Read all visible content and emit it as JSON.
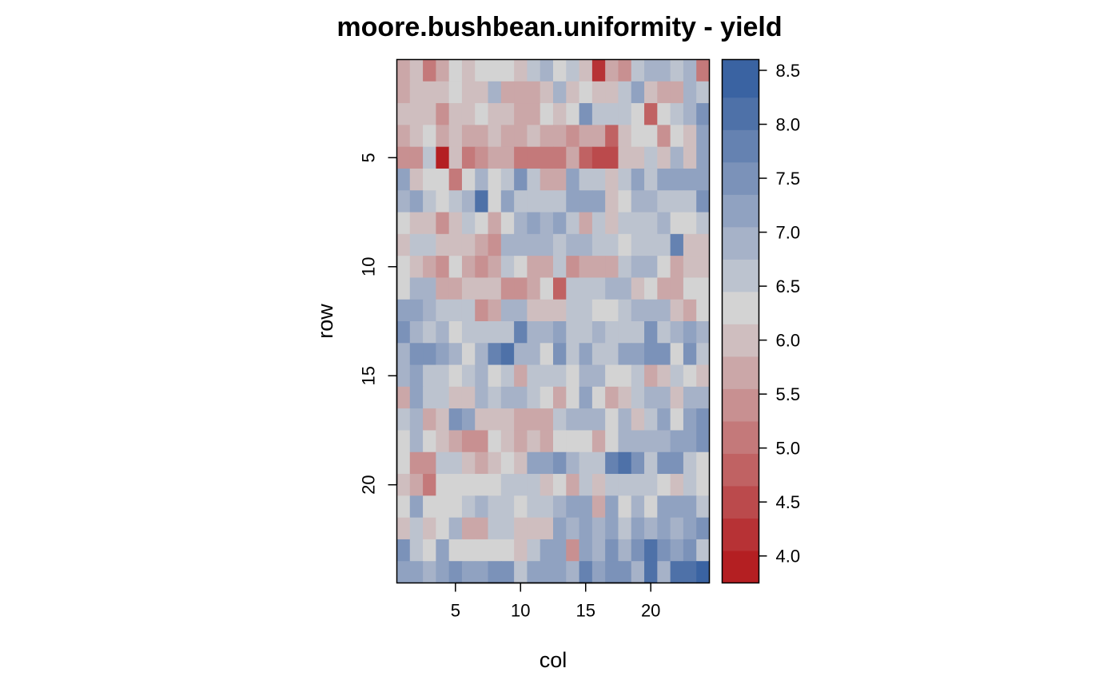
{
  "chart_data": {
    "type": "heatmap",
    "title": "moore.bushbean.uniformity - yield",
    "xlabel": "col",
    "ylabel": "row",
    "n_cols": 24,
    "n_rows": 24,
    "xlim": [
      0.5,
      24.5
    ],
    "ylim": [
      24.5,
      0.5
    ],
    "x_ticks": [
      5,
      10,
      15,
      20
    ],
    "y_ticks": [
      5,
      10,
      15,
      20
    ],
    "legend": {
      "position": "right",
      "breaks": [
        3.75,
        4.05,
        4.35,
        4.65,
        4.95,
        5.25,
        5.55,
        5.85,
        6.15,
        6.45,
        6.75,
        7.05,
        7.35,
        7.65,
        7.95,
        8.25,
        8.6
      ],
      "tick_values": [
        4.0,
        4.5,
        5.0,
        5.5,
        6.0,
        6.5,
        7.0,
        7.5,
        8.0,
        8.5
      ],
      "tick_labels": [
        "4.0",
        "4.5",
        "5.0",
        "5.5",
        "6.0",
        "6.5",
        "7.0",
        "7.5",
        "8.0",
        "8.5"
      ]
    },
    "palette": [
      "#b41f22",
      "#b73235",
      "#bb4a4c",
      "#c06263",
      "#c4797a",
      "#c89091",
      "#cba7a8",
      "#cfbebf",
      "#d3d3d3",
      "#bcc3cf",
      "#a6b2c8",
      "#90a2c1",
      "#7b92b9",
      "#6582b1",
      "#4e71a8",
      "#3a63a2"
    ],
    "values": [
      [
        5.6,
        5.9,
        5.2,
        5.7,
        6.4,
        5.9,
        6.4,
        6.4,
        6.2,
        6.1,
        6.6,
        7.0,
        6.3,
        6.7,
        5.9,
        4.2,
        5.6,
        5.4,
        6.6,
        6.9,
        6.9,
        6.6,
        6.9,
        5.1
      ],
      [
        5.7,
        6.0,
        6.1,
        5.9,
        6.4,
        6.0,
        6.0,
        6.9,
        5.7,
        5.6,
        5.6,
        6.1,
        6.9,
        5.9,
        6.4,
        6.1,
        6.1,
        6.5,
        7.3,
        6.1,
        5.6,
        5.8,
        6.8,
        6.5
      ],
      [
        5.9,
        6.1,
        6.0,
        5.3,
        6.0,
        6.0,
        6.4,
        6.0,
        5.9,
        5.6,
        5.6,
        6.2,
        5.9,
        6.2,
        7.4,
        6.5,
        6.5,
        6.7,
        6.4,
        4.8,
        6.2,
        6.6,
        6.8,
        7.5
      ],
      [
        5.8,
        6.1,
        6.3,
        5.6,
        5.9,
        5.7,
        5.6,
        5.9,
        5.6,
        5.6,
        6.1,
        5.8,
        5.8,
        5.3,
        5.7,
        5.7,
        4.8,
        6.1,
        6.4,
        6.4,
        5.4,
        6.4,
        5.9,
        7.1
      ],
      [
        5.5,
        5.5,
        6.5,
        4.0,
        6.1,
        5.1,
        5.3,
        5.6,
        5.6,
        5.2,
        5.2,
        5.2,
        5.2,
        5.7,
        4.7,
        4.6,
        4.6,
        5.9,
        6.0,
        6.7,
        6.1,
        6.8,
        6.0,
        7.1
      ],
      [
        7.2,
        6.0,
        6.4,
        6.4,
        5.2,
        6.2,
        7.0,
        6.4,
        6.6,
        7.5,
        6.7,
        5.8,
        5.8,
        7.1,
        6.7,
        6.7,
        6.0,
        6.6,
        7.3,
        6.6,
        7.1,
        7.3,
        7.3,
        7.2
      ],
      [
        7.0,
        7.2,
        6.6,
        6.2,
        6.6,
        6.9,
        8.1,
        6.4,
        7.1,
        6.6,
        6.5,
        6.5,
        6.5,
        7.3,
        7.3,
        7.3,
        6.0,
        6.2,
        7.0,
        7.0,
        6.7,
        6.5,
        6.5,
        7.6
      ],
      [
        6.4,
        6.1,
        6.0,
        5.5,
        6.0,
        6.7,
        6.2,
        5.8,
        6.3,
        6.9,
        7.1,
        6.9,
        7.3,
        6.6,
        5.7,
        6.7,
        6.1,
        6.6,
        6.5,
        6.5,
        6.8,
        6.3,
        6.3,
        6.7
      ],
      [
        5.9,
        6.5,
        6.5,
        6.0,
        6.0,
        6.0,
        5.6,
        5.5,
        6.8,
        6.8,
        6.8,
        6.8,
        6.5,
        6.8,
        6.8,
        6.6,
        6.5,
        6.3,
        6.5,
        6.5,
        6.7,
        7.8,
        6.1,
        6.1
      ],
      [
        6.2,
        6.0,
        5.8,
        5.5,
        6.3,
        5.7,
        5.3,
        5.6,
        6.5,
        6.2,
        5.8,
        5.6,
        6.6,
        5.4,
        5.7,
        5.7,
        5.7,
        6.5,
        6.8,
        6.8,
        6.2,
        5.7,
        6.0,
        6.0
      ],
      [
        6.4,
        6.8,
        6.8,
        5.7,
        5.7,
        5.9,
        5.9,
        5.9,
        5.3,
        5.3,
        5.8,
        6.2,
        4.9,
        6.6,
        6.6,
        6.5,
        6.8,
        6.8,
        5.9,
        6.3,
        5.7,
        5.8,
        6.3,
        6.4
      ],
      [
        7.3,
        7.2,
        7.0,
        6.7,
        6.7,
        6.6,
        5.5,
        5.8,
        6.9,
        6.9,
        6.1,
        6.1,
        6.1,
        6.7,
        6.6,
        6.4,
        6.4,
        6.5,
        6.8,
        6.8,
        6.8,
        6.1,
        5.8,
        6.4
      ],
      [
        7.5,
        7.0,
        6.7,
        7.0,
        6.3,
        6.7,
        6.6,
        6.6,
        6.7,
        7.7,
        6.9,
        6.8,
        7.2,
        6.7,
        6.6,
        6.8,
        6.6,
        6.6,
        6.6,
        7.4,
        6.5,
        6.8,
        7.2,
        7.0
      ],
      [
        6.8,
        7.6,
        7.6,
        7.2,
        7.0,
        6.3,
        6.9,
        7.7,
        8.0,
        6.8,
        6.8,
        6.2,
        7.6,
        6.7,
        7.2,
        6.5,
        6.7,
        7.2,
        7.2,
        7.4,
        7.4,
        6.4,
        7.6,
        6.6
      ],
      [
        7.0,
        7.2,
        6.6,
        6.6,
        6.2,
        6.6,
        6.9,
        6.2,
        6.7,
        5.7,
        6.6,
        6.6,
        6.6,
        6.3,
        6.8,
        6.8,
        6.2,
        6.2,
        6.6,
        5.7,
        6.1,
        6.6,
        6.3,
        5.9
      ],
      [
        5.8,
        7.1,
        6.6,
        6.5,
        6.0,
        6.0,
        7.0,
        6.5,
        6.8,
        6.8,
        6.7,
        6.2,
        5.6,
        6.3,
        7.1,
        6.2,
        5.8,
        6.1,
        6.5,
        6.8,
        7.0,
        6.0,
        6.8,
        6.8
      ],
      [
        6.5,
        7.0,
        5.8,
        6.1,
        7.4,
        7.1,
        6.1,
        6.1,
        6.1,
        5.7,
        5.8,
        5.8,
        6.6,
        6.9,
        6.8,
        6.8,
        6.3,
        6.9,
        6.1,
        6.7,
        7.1,
        6.2,
        7.1,
        7.6
      ],
      [
        6.3,
        7.0,
        6.2,
        6.0,
        5.8,
        5.5,
        5.5,
        6.3,
        6.0,
        5.7,
        6.1,
        5.6,
        6.4,
        6.4,
        6.4,
        5.8,
        6.4,
        7.0,
        6.9,
        6.9,
        6.9,
        7.3,
        7.1,
        7.4
      ],
      [
        6.2,
        5.5,
        5.5,
        6.6,
        6.6,
        6.1,
        5.6,
        6.1,
        6.4,
        6.0,
        7.1,
        7.1,
        7.6,
        6.8,
        6.7,
        6.5,
        7.8,
        8.1,
        7.6,
        6.5,
        7.5,
        7.5,
        6.6,
        6.3
      ],
      [
        6.0,
        5.6,
        5.1,
        6.4,
        6.4,
        6.4,
        6.4,
        6.4,
        6.6,
        6.6,
        6.6,
        6.0,
        6.4,
        5.8,
        6.7,
        6.1,
        6.6,
        6.6,
        6.6,
        6.5,
        6.3,
        5.9,
        6.6,
        6.3
      ],
      [
        6.4,
        7.2,
        6.4,
        6.4,
        6.4,
        6.6,
        7.0,
        6.6,
        6.6,
        6.2,
        6.6,
        6.6,
        6.9,
        7.3,
        7.3,
        5.6,
        7.1,
        6.4,
        6.8,
        6.2,
        7.1,
        7.1,
        7.1,
        6.7
      ],
      [
        6.1,
        6.6,
        6.1,
        6.3,
        6.9,
        5.7,
        5.7,
        6.5,
        6.5,
        6.1,
        6.1,
        6.1,
        7.3,
        6.8,
        7.2,
        6.9,
        7.3,
        6.5,
        7.3,
        7.0,
        7.3,
        6.8,
        7.1,
        7.5
      ],
      [
        7.6,
        6.7,
        6.2,
        7.2,
        6.4,
        6.4,
        6.4,
        6.4,
        6.4,
        6.0,
        6.6,
        7.2,
        7.2,
        5.4,
        7.3,
        6.8,
        7.4,
        6.8,
        7.5,
        8.0,
        7.4,
        7.2,
        7.4,
        6.6
      ],
      [
        7.1,
        7.1,
        6.8,
        7.2,
        7.6,
        7.1,
        7.1,
        7.4,
        7.6,
        6.5,
        7.1,
        7.1,
        7.1,
        6.9,
        7.9,
        7.2,
        7.5,
        7.5,
        6.8,
        8.0,
        6.9,
        8.0,
        8.0,
        8.3
      ]
    ]
  }
}
